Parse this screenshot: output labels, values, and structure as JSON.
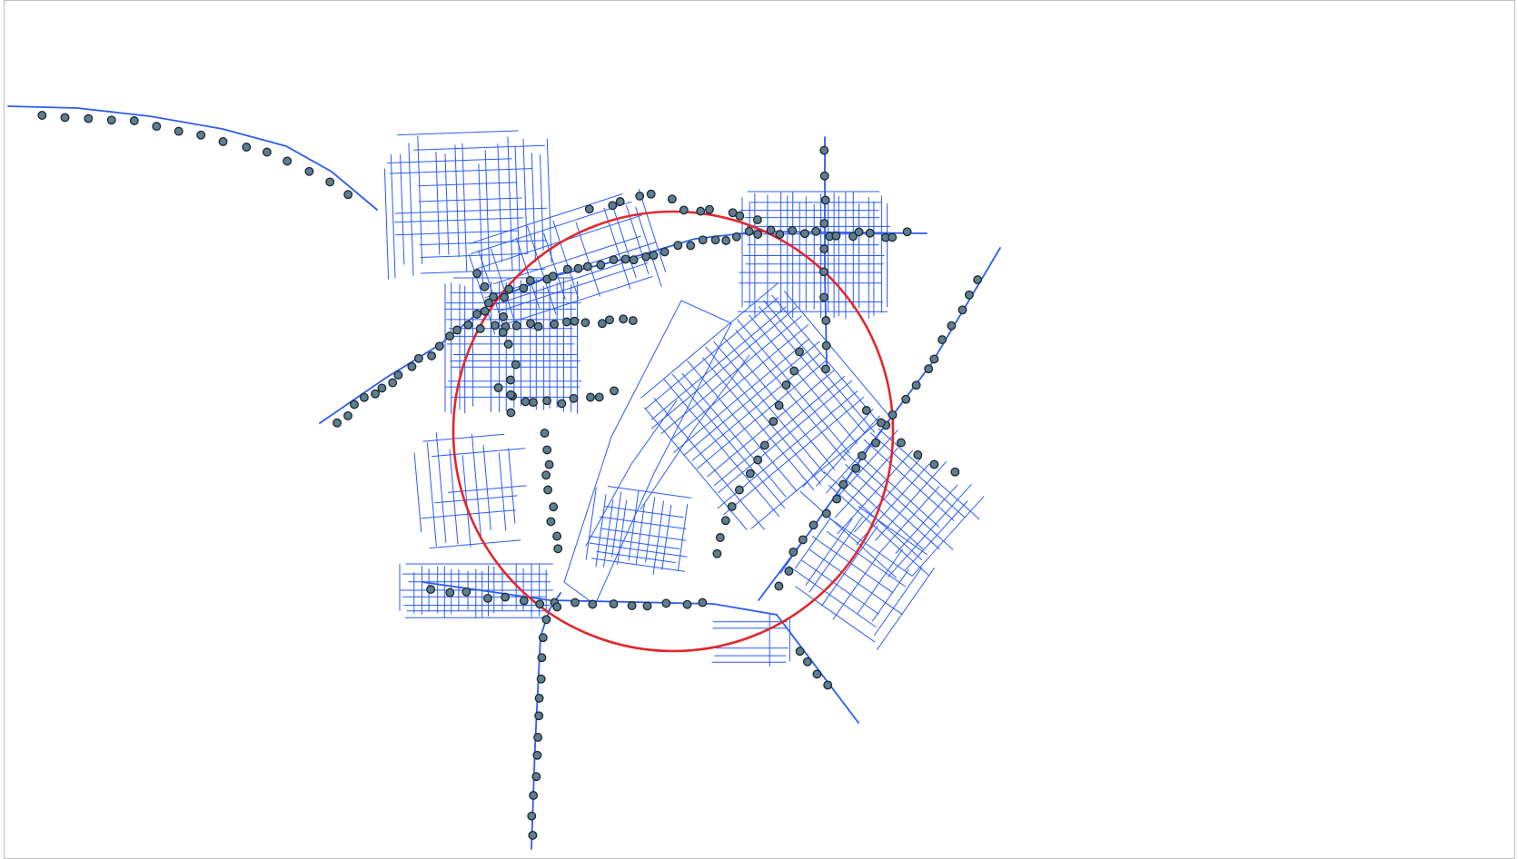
{
  "map": {
    "colors": {
      "road": "#2b5cf5",
      "stop_fill": "#5d7f8f",
      "stop_stroke": "#1e2630",
      "buffer_ring": "#e3262b",
      "background": "#ffffff",
      "frame": "#bfbfbf"
    },
    "layers": [
      {
        "name": "street-network",
        "style": "thin blue lines"
      },
      {
        "name": "transit-stops",
        "style": "dark grey-blue circles"
      },
      {
        "name": "buffer-ring",
        "style": "red circle outline"
      }
    ]
  }
}
